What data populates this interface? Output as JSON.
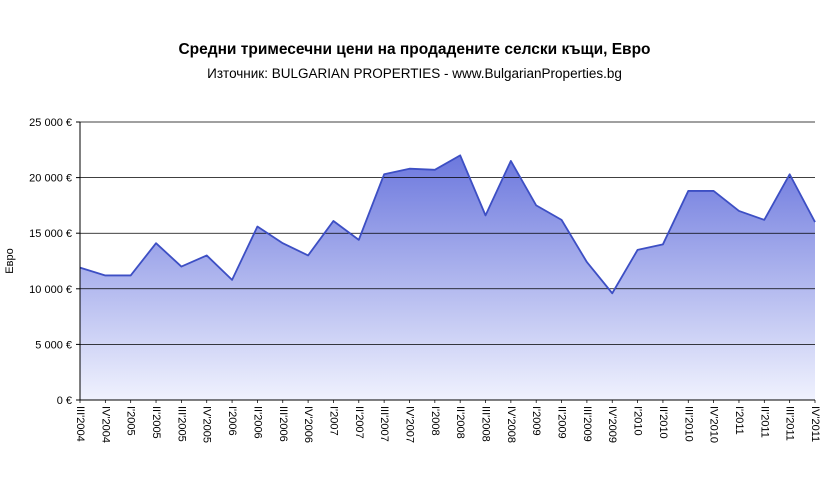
{
  "chart_data": {
    "type": "area",
    "title": "Средни тримесечни цени на продадените селски къщи, Евро",
    "subtitle": "Източник: BULGARIAN PROPERTIES - www.BulgarianProperties.bg",
    "categories": [
      "III'2004",
      "IV'2004",
      "I'2005",
      "II'2005",
      "III'2005",
      "IV'2005",
      "I'2006",
      "II'2006",
      "III'2006",
      "IV'2006",
      "I'2007",
      "II'2007",
      "III'2007",
      "IV'2007",
      "I'2008",
      "II'2008",
      "III'2008",
      "IV'2008",
      "I'2009",
      "II'2009",
      "III'2009",
      "IV'2009",
      "I'2010",
      "II'2010",
      "III'2010",
      "IV'2010",
      "I'2011",
      "II'2011",
      "III'2011",
      "IV'2011"
    ],
    "values": [
      11900,
      11200,
      11200,
      14100,
      12000,
      13000,
      10800,
      15600,
      14100,
      13000,
      16100,
      14400,
      20300,
      20800,
      20700,
      22000,
      16600,
      21500,
      17500,
      16200,
      12400,
      9600,
      13500,
      14000,
      18800,
      18800,
      17000,
      16200,
      20300,
      16000
    ],
    "xlabel": "",
    "ylabel": "Евро",
    "ylim": [
      0,
      25000
    ],
    "ytick_interval": 5000,
    "ytick_labels": [
      "0 €",
      "5 000 €",
      "10 000 €",
      "15 000 €",
      "20 000 €",
      "25 000 €"
    ],
    "grid": true,
    "legend": "none",
    "colors": {
      "line": "#3D4FC4",
      "fill_top": "#5A67D9",
      "fill_bottom": "#F0F2FE",
      "grid": "#000000",
      "axis": "#000000"
    }
  }
}
